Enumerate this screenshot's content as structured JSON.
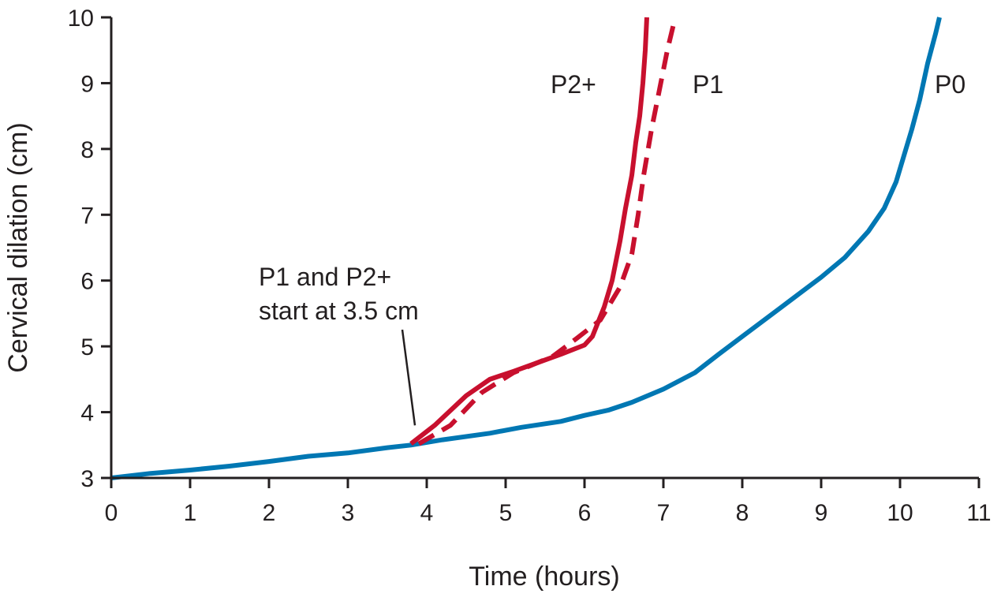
{
  "chart_data": {
    "type": "line",
    "xlabel": "Time (hours)",
    "ylabel": "Cervical dilation (cm)",
    "xlim": [
      0,
      11
    ],
    "ylim": [
      3,
      10
    ],
    "x_ticks": [
      0,
      1,
      2,
      3,
      4,
      5,
      6,
      7,
      8,
      9,
      10,
      11
    ],
    "y_ticks": [
      3,
      4,
      5,
      6,
      7,
      8,
      9,
      10
    ],
    "grid": false,
    "legend": "none; series labelled directly on the plot",
    "series": [
      {
        "name": "P0",
        "color": "#0077b3",
        "style": "solid",
        "points": [
          [
            0,
            3.0
          ],
          [
            0.5,
            3.07
          ],
          [
            1,
            3.12
          ],
          [
            1.5,
            3.18
          ],
          [
            2,
            3.25
          ],
          [
            2.5,
            3.33
          ],
          [
            3,
            3.38
          ],
          [
            3.5,
            3.46
          ],
          [
            3.8,
            3.5
          ],
          [
            4.2,
            3.58
          ],
          [
            4.8,
            3.68
          ],
          [
            5.2,
            3.77
          ],
          [
            5.7,
            3.86
          ],
          [
            6,
            3.95
          ],
          [
            6.3,
            4.03
          ],
          [
            6.6,
            4.15
          ],
          [
            7,
            4.35
          ],
          [
            7.4,
            4.6
          ],
          [
            7.7,
            4.88
          ],
          [
            8,
            5.15
          ],
          [
            8.5,
            5.6
          ],
          [
            9,
            6.05
          ],
          [
            9.3,
            6.35
          ],
          [
            9.6,
            6.75
          ],
          [
            9.8,
            7.1
          ],
          [
            9.95,
            7.5
          ],
          [
            10.05,
            7.9
          ],
          [
            10.15,
            8.3
          ],
          [
            10.25,
            8.75
          ],
          [
            10.35,
            9.3
          ],
          [
            10.45,
            9.75
          ],
          [
            10.5,
            10.0
          ]
        ]
      },
      {
        "name": "P1",
        "color": "#c8102e",
        "style": "dashed",
        "points": [
          [
            3.9,
            3.52
          ],
          [
            4.3,
            3.8
          ],
          [
            4.7,
            4.3
          ],
          [
            5.1,
            4.6
          ],
          [
            5.6,
            4.85
          ],
          [
            5.9,
            5.12
          ],
          [
            6.2,
            5.4
          ],
          [
            6.45,
            5.9
          ],
          [
            6.6,
            6.4
          ],
          [
            6.68,
            7.0
          ],
          [
            6.75,
            7.6
          ],
          [
            6.85,
            8.3
          ],
          [
            6.95,
            8.9
          ],
          [
            7.05,
            9.5
          ],
          [
            7.15,
            10.0
          ]
        ]
      },
      {
        "name": "P2+",
        "color": "#c8102e",
        "style": "solid",
        "points": [
          [
            3.8,
            3.52
          ],
          [
            4.1,
            3.8
          ],
          [
            4.5,
            4.25
          ],
          [
            4.8,
            4.5
          ],
          [
            5.1,
            4.62
          ],
          [
            5.4,
            4.75
          ],
          [
            5.7,
            4.88
          ],
          [
            6.0,
            5.02
          ],
          [
            6.1,
            5.15
          ],
          [
            6.25,
            5.6
          ],
          [
            6.35,
            6.0
          ],
          [
            6.45,
            6.6
          ],
          [
            6.52,
            7.1
          ],
          [
            6.6,
            7.6
          ],
          [
            6.65,
            8.1
          ],
          [
            6.7,
            8.5
          ],
          [
            6.74,
            9.0
          ],
          [
            6.77,
            9.5
          ],
          [
            6.79,
            10.0
          ]
        ]
      }
    ],
    "annotations": [
      {
        "lines": [
          "P1 and P2+",
          "start at 3.5 cm"
        ],
        "pointer_to": [
          3.85,
          3.8
        ]
      }
    ]
  }
}
